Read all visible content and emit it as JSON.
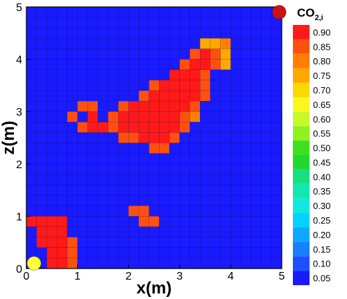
{
  "chart_data": {
    "type": "heatmap",
    "title": "",
    "xlabel": "x(m)",
    "ylabel": "z(m)",
    "xlim": [
      0,
      5
    ],
    "ylim": [
      0,
      5
    ],
    "x_ticks": [
      "0",
      "1",
      "2",
      "3",
      "4",
      "5"
    ],
    "y_ticks": [
      "0",
      "1",
      "2",
      "3",
      "4",
      "5"
    ],
    "grid_cells_x": 25,
    "grid_cells_y": 25,
    "background_value": 0.0,
    "colorbar": {
      "title": "CO",
      "title_subscript": "2,i",
      "levels": [
        0.05,
        0.1,
        0.15,
        0.2,
        0.25,
        0.3,
        0.35,
        0.4,
        0.45,
        0.5,
        0.55,
        0.6,
        0.65,
        0.7,
        0.75,
        0.8,
        0.85,
        0.9
      ],
      "labels": [
        "0.05",
        "0.10",
        "0.15",
        "0.20",
        "0.25",
        "0.30",
        "0.35",
        "0.40",
        "0.45",
        "0.50",
        "0.55",
        "0.60",
        "0.65",
        "0.70",
        "0.75",
        "0.80",
        "0.85",
        "0.90"
      ],
      "colors": [
        "#1a1aff",
        "#1c50ff",
        "#1780ff",
        "#10a8ff",
        "#08d0ff",
        "#10e8e0",
        "#10e8b0",
        "#18e080",
        "#20d830",
        "#40e020",
        "#90f020",
        "#c8f828",
        "#f8f820",
        "#ffd800",
        "#ffa800",
        "#ff8000",
        "#ff5010",
        "#ff1a1a"
      ]
    },
    "markers": [
      {
        "name": "injection",
        "x": 0.15,
        "z": 0.1,
        "color": "#ffff33"
      },
      {
        "name": "production",
        "x": 4.95,
        "z": 4.9,
        "color": "#cc1111"
      }
    ],
    "cells": [
      {
        "i": 0,
        "j": 4,
        "v": 0.92
      },
      {
        "i": 1,
        "j": 4,
        "v": 0.92
      },
      {
        "i": 2,
        "j": 4,
        "v": 0.92
      },
      {
        "i": 3,
        "j": 4,
        "v": 0.92
      },
      {
        "i": 1,
        "j": 3,
        "v": 0.92
      },
      {
        "i": 2,
        "j": 3,
        "v": 0.92
      },
      {
        "i": 3,
        "j": 3,
        "v": 0.92
      },
      {
        "i": 1,
        "j": 2,
        "v": 0.92
      },
      {
        "i": 2,
        "j": 2,
        "v": 0.92
      },
      {
        "i": 3,
        "j": 2,
        "v": 0.92
      },
      {
        "i": 4,
        "j": 2,
        "v": 0.88
      },
      {
        "i": 2,
        "j": 1,
        "v": 0.92
      },
      {
        "i": 3,
        "j": 1,
        "v": 0.92
      },
      {
        "i": 4,
        "j": 1,
        "v": 0.88
      },
      {
        "i": 2,
        "j": 0,
        "v": 0.92
      },
      {
        "i": 3,
        "j": 0,
        "v": 0.92
      },
      {
        "i": 4,
        "j": 0,
        "v": 0.88
      },
      {
        "i": 10,
        "j": 5,
        "v": 0.88
      },
      {
        "i": 11,
        "j": 5,
        "v": 0.88
      },
      {
        "i": 11,
        "j": 4,
        "v": 0.88
      },
      {
        "i": 12,
        "j": 4,
        "v": 0.85
      },
      {
        "i": 5,
        "j": 15,
        "v": 0.88
      },
      {
        "i": 4,
        "j": 14,
        "v": 0.88
      },
      {
        "i": 6,
        "j": 14,
        "v": 0.92
      },
      {
        "i": 5,
        "j": 13,
        "v": 0.88
      },
      {
        "i": 6,
        "j": 15,
        "v": 0.88
      },
      {
        "i": 6,
        "j": 13,
        "v": 0.92
      },
      {
        "i": 17,
        "j": 21,
        "v": 0.78
      },
      {
        "i": 18,
        "j": 21,
        "v": 0.78
      },
      {
        "i": 19,
        "j": 21,
        "v": 0.82
      },
      {
        "i": 16,
        "j": 20,
        "v": 0.88
      },
      {
        "i": 17,
        "j": 20,
        "v": 0.92
      },
      {
        "i": 18,
        "j": 20,
        "v": 0.88
      },
      {
        "i": 19,
        "j": 20,
        "v": 0.78
      },
      {
        "i": 15,
        "j": 19,
        "v": 0.88
      },
      {
        "i": 16,
        "j": 19,
        "v": 0.92
      },
      {
        "i": 17,
        "j": 19,
        "v": 0.92
      },
      {
        "i": 18,
        "j": 19,
        "v": 0.88
      },
      {
        "i": 19,
        "j": 19,
        "v": 0.78
      },
      {
        "i": 14,
        "j": 18,
        "v": 0.92
      },
      {
        "i": 15,
        "j": 18,
        "v": 0.92
      },
      {
        "i": 16,
        "j": 18,
        "v": 0.92
      },
      {
        "i": 17,
        "j": 18,
        "v": 0.88
      },
      {
        "i": 12,
        "j": 17,
        "v": 0.88
      },
      {
        "i": 13,
        "j": 17,
        "v": 0.92
      },
      {
        "i": 14,
        "j": 17,
        "v": 0.92
      },
      {
        "i": 15,
        "j": 17,
        "v": 0.92
      },
      {
        "i": 16,
        "j": 17,
        "v": 0.92
      },
      {
        "i": 17,
        "j": 17,
        "v": 0.88
      },
      {
        "i": 11,
        "j": 16,
        "v": 0.85
      },
      {
        "i": 12,
        "j": 16,
        "v": 0.92
      },
      {
        "i": 13,
        "j": 16,
        "v": 0.92
      },
      {
        "i": 14,
        "j": 16,
        "v": 0.92
      },
      {
        "i": 15,
        "j": 16,
        "v": 0.92
      },
      {
        "i": 16,
        "j": 16,
        "v": 0.92
      },
      {
        "i": 17,
        "j": 16,
        "v": 0.88
      },
      {
        "i": 9,
        "j": 15,
        "v": 0.88
      },
      {
        "i": 10,
        "j": 15,
        "v": 0.92
      },
      {
        "i": 11,
        "j": 15,
        "v": 0.92
      },
      {
        "i": 12,
        "j": 15,
        "v": 0.92
      },
      {
        "i": 13,
        "j": 15,
        "v": 0.92
      },
      {
        "i": 14,
        "j": 15,
        "v": 0.92
      },
      {
        "i": 15,
        "j": 15,
        "v": 0.92
      },
      {
        "i": 16,
        "j": 15,
        "v": 0.88
      },
      {
        "i": 8,
        "j": 14,
        "v": 0.88
      },
      {
        "i": 9,
        "j": 14,
        "v": 0.92
      },
      {
        "i": 10,
        "j": 14,
        "v": 0.92
      },
      {
        "i": 11,
        "j": 14,
        "v": 0.92
      },
      {
        "i": 12,
        "j": 14,
        "v": 0.92
      },
      {
        "i": 13,
        "j": 14,
        "v": 0.92
      },
      {
        "i": 14,
        "j": 14,
        "v": 0.92
      },
      {
        "i": 15,
        "j": 14,
        "v": 0.88
      },
      {
        "i": 16,
        "j": 14,
        "v": 0.8
      },
      {
        "i": 6,
        "j": 13,
        "v": 0.92
      },
      {
        "i": 7,
        "j": 13,
        "v": 0.92
      },
      {
        "i": 8,
        "j": 13,
        "v": 0.88
      },
      {
        "i": 9,
        "j": 13,
        "v": 0.92
      },
      {
        "i": 10,
        "j": 13,
        "v": 0.92
      },
      {
        "i": 11,
        "j": 13,
        "v": 0.92
      },
      {
        "i": 12,
        "j": 13,
        "v": 0.92
      },
      {
        "i": 13,
        "j": 13,
        "v": 0.92
      },
      {
        "i": 14,
        "j": 13,
        "v": 0.92
      },
      {
        "i": 15,
        "j": 13,
        "v": 0.88
      },
      {
        "i": 9,
        "j": 12,
        "v": 0.88
      },
      {
        "i": 10,
        "j": 12,
        "v": 0.88
      },
      {
        "i": 11,
        "j": 12,
        "v": 0.92
      },
      {
        "i": 12,
        "j": 12,
        "v": 0.92
      },
      {
        "i": 13,
        "j": 12,
        "v": 0.92
      },
      {
        "i": 14,
        "j": 12,
        "v": 0.88
      },
      {
        "i": 12,
        "j": 11,
        "v": 0.88
      },
      {
        "i": 13,
        "j": 11,
        "v": 0.85
      }
    ]
  }
}
